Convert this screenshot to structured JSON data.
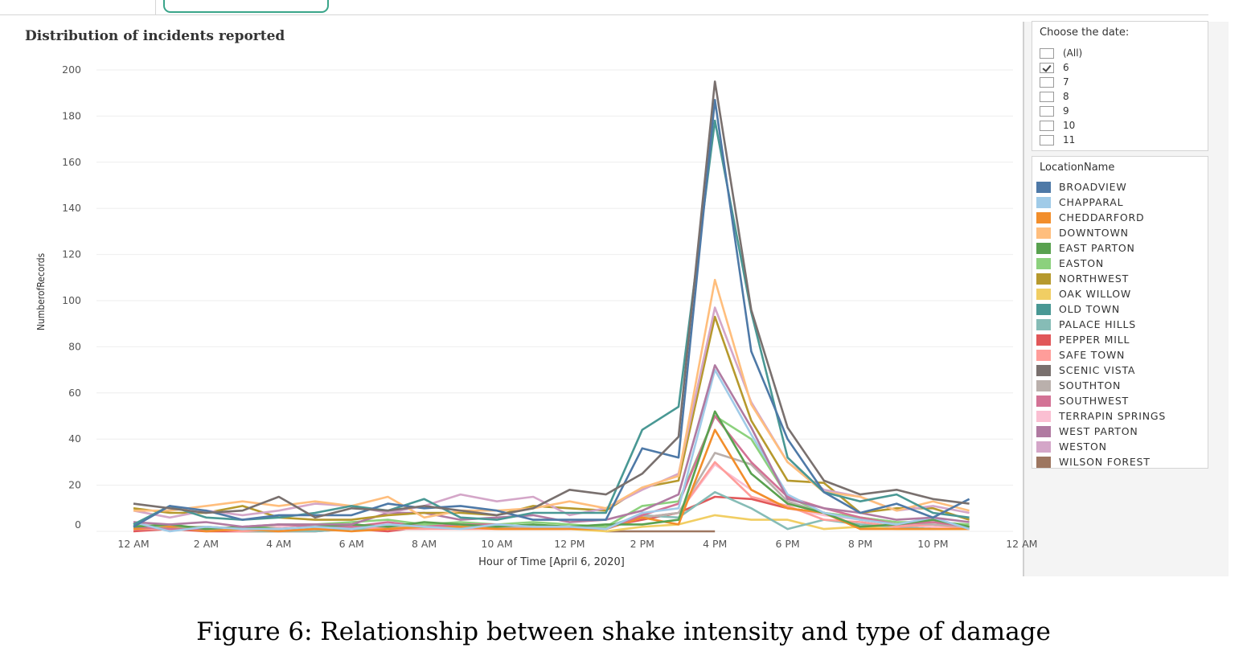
{
  "chart_data": {
    "type": "line",
    "title": "Distribution of incidents reported",
    "xlabel": "Hour of Time [April 6, 2020]",
    "ylabel": "NumberofRecords",
    "ylim": [
      0,
      200
    ],
    "yticks": [
      0,
      20,
      40,
      60,
      80,
      100,
      120,
      140,
      160,
      180,
      200
    ],
    "x_hours": [
      0,
      1,
      2,
      3,
      4,
      5,
      6,
      7,
      8,
      9,
      10,
      11,
      12,
      13,
      14,
      15,
      16,
      17,
      18,
      19,
      20,
      21,
      22,
      23
    ],
    "xtick_hours": [
      0,
      2,
      4,
      6,
      8,
      10,
      12,
      14,
      16,
      18,
      20,
      22,
      24
    ],
    "xtick_labels": [
      "12 AM",
      "2 AM",
      "4 AM",
      "6 AM",
      "8 AM",
      "10 AM",
      "12 PM",
      "2 PM",
      "4 PM",
      "6 PM",
      "8 PM",
      "10 PM",
      "12 AM"
    ],
    "grid": "horizontal",
    "legend_position": "right",
    "series": [
      {
        "name": "BROADVIEW",
        "color": "#4e79a7",
        "values": [
          2,
          11,
          9,
          5,
          7,
          7,
          7,
          12,
          10,
          11,
          9,
          5,
          5,
          5,
          36,
          32,
          187,
          78,
          40,
          17,
          8,
          12,
          6,
          14
        ]
      },
      {
        "name": "CHAPPARAL",
        "color": "#a0cbe8",
        "values": [
          4,
          0,
          2,
          1,
          1,
          2,
          1,
          3,
          2,
          1,
          3,
          2,
          2,
          1,
          8,
          10,
          70,
          42,
          16,
          8,
          5,
          3,
          6,
          1
        ]
      },
      {
        "name": "CHEDDARFORD",
        "color": "#f28e2b",
        "values": [
          1,
          2,
          0,
          1,
          0,
          1,
          0,
          1,
          2,
          2,
          1,
          1,
          1,
          1,
          6,
          3,
          44,
          18,
          10,
          8,
          1,
          1,
          1,
          1
        ]
      },
      {
        "name": "DOWNTOWN",
        "color": "#ffbe7d",
        "values": [
          9,
          9,
          11,
          13,
          11,
          13,
          11,
          15,
          6,
          9,
          9,
          10,
          13,
          10,
          19,
          24,
          109,
          55,
          30,
          17,
          15,
          9,
          13,
          9
        ]
      },
      {
        "name": "EAST PARTON",
        "color": "#59a14f",
        "values": [
          2,
          3,
          1,
          2,
          1,
          2,
          3,
          2,
          4,
          3,
          2,
          3,
          2,
          3,
          3,
          5,
          52,
          25,
          12,
          8,
          2,
          3,
          5,
          2
        ]
      },
      {
        "name": "EASTON",
        "color": "#8cd17d",
        "values": [
          3,
          1,
          2,
          1,
          3,
          3,
          4,
          5,
          3,
          4,
          3,
          4,
          3,
          2,
          11,
          13,
          50,
          40,
          15,
          8,
          6,
          4,
          4,
          3
        ]
      },
      {
        "name": "NORTHWEST",
        "color": "#b6992d",
        "values": [
          10,
          8,
          8,
          11,
          6,
          5,
          5,
          7,
          8,
          8,
          7,
          11,
          10,
          9,
          19,
          22,
          93,
          48,
          22,
          21,
          8,
          10,
          10,
          5
        ]
      },
      {
        "name": "OAK WILLOW",
        "color": "#f1ce63",
        "values": [
          2,
          1,
          1,
          0,
          0,
          1,
          1,
          2,
          2,
          1,
          1,
          1,
          1,
          0,
          2,
          3,
          7,
          5,
          5,
          1,
          2,
          1,
          1,
          1
        ]
      },
      {
        "name": "OLD TOWN",
        "color": "#499894",
        "values": [
          3,
          11,
          6,
          5,
          6,
          8,
          11,
          9,
          14,
          6,
          5,
          8,
          8,
          8,
          44,
          54,
          178,
          95,
          32,
          17,
          13,
          16,
          8,
          6
        ]
      },
      {
        "name": "PALACE HILLS",
        "color": "#86bcb6",
        "values": [
          1,
          1,
          2,
          0,
          0,
          0,
          1,
          1,
          1,
          2,
          3,
          2,
          1,
          2,
          7,
          6,
          17,
          10,
          1,
          5,
          3,
          2,
          1,
          2
        ]
      },
      {
        "name": "PEPPER MILL",
        "color": "#e15759",
        "values": [
          0,
          1,
          0,
          0,
          0,
          0,
          1,
          0,
          2,
          2,
          1,
          1,
          1,
          2,
          5,
          8,
          15,
          14,
          10,
          8,
          5,
          3,
          2,
          2
        ]
      },
      {
        "name": "SAFE TOWN",
        "color": "#ff9d9a",
        "values": [
          1,
          1,
          1,
          0,
          1,
          1,
          2,
          1,
          1,
          1,
          1,
          2,
          1,
          2,
          6,
          8,
          30,
          15,
          11,
          5,
          4,
          2,
          3,
          1
        ]
      },
      {
        "name": "SCENIC VISTA",
        "color": "#79706e",
        "values": [
          12,
          10,
          8,
          9,
          15,
          6,
          10,
          9,
          11,
          9,
          7,
          10,
          18,
          16,
          25,
          41,
          195,
          96,
          45,
          22,
          16,
          18,
          14,
          12
        ]
      },
      {
        "name": "SOUTHTON",
        "color": "#bab0ac",
        "values": [
          3,
          2,
          2,
          1,
          1,
          2,
          3,
          2,
          3,
          2,
          2,
          2,
          2,
          2,
          6,
          8,
          34,
          29,
          13,
          8,
          6,
          4,
          3,
          2
        ]
      },
      {
        "name": "SOUTHWEST",
        "color": "#d37295",
        "values": [
          2,
          1,
          1,
          2,
          3,
          2,
          2,
          4,
          2,
          3,
          3,
          2,
          2,
          1,
          7,
          12,
          50,
          30,
          15,
          10,
          6,
          3,
          4,
          2
        ]
      },
      {
        "name": "TERRAPIN SPRINGS",
        "color": "#fabfd2",
        "values": [
          3,
          2,
          1,
          1,
          2,
          1,
          2,
          3,
          2,
          1,
          3,
          2,
          2,
          1,
          6,
          8,
          29,
          18,
          10,
          7,
          5,
          3,
          2,
          1
        ]
      },
      {
        "name": "WEST PARTON",
        "color": "#b07aa1",
        "values": [
          4,
          3,
          4,
          2,
          3,
          3,
          3,
          8,
          8,
          5,
          6,
          7,
          4,
          5,
          9,
          16,
          72,
          45,
          14,
          10,
          8,
          5,
          6,
          4
        ]
      },
      {
        "name": "WESTON",
        "color": "#d4a6c8",
        "values": [
          9,
          6,
          9,
          7,
          9,
          12,
          11,
          8,
          11,
          16,
          13,
          15,
          7,
          10,
          18,
          25,
          97,
          56,
          30,
          18,
          15,
          9,
          11,
          8
        ]
      },
      {
        "name": "WILSON FOREST",
        "color": "#9d7660",
        "values": [
          null,
          null,
          null,
          null,
          null,
          null,
          null,
          null,
          null,
          null,
          null,
          null,
          null,
          0,
          0,
          0,
          0,
          null,
          null,
          null,
          null,
          null,
          null,
          null
        ]
      }
    ]
  },
  "date_filter": {
    "title": "Choose the date:",
    "options": [
      {
        "label": "(All)",
        "checked": false
      },
      {
        "label": "6",
        "checked": true
      },
      {
        "label": "7",
        "checked": false
      },
      {
        "label": "8",
        "checked": false
      },
      {
        "label": "9",
        "checked": false
      },
      {
        "label": "10",
        "checked": false
      },
      {
        "label": "11",
        "checked": false
      }
    ]
  },
  "legend": {
    "title": "LocationName"
  },
  "caption": "Figure 6: Relationship between shake intensity and type of damage"
}
